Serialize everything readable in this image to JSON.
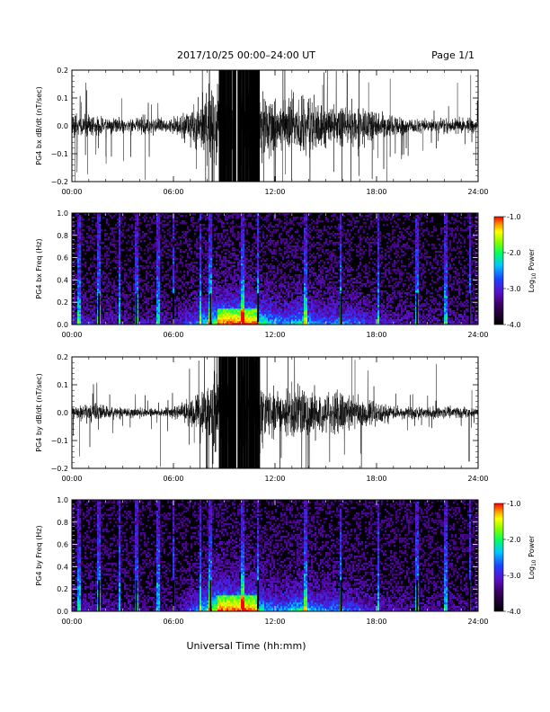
{
  "header": {
    "title": "2017/10/25  00:00–24:00 UT",
    "page": "Page 1/1"
  },
  "x_axis": {
    "label": "Universal Time (hh:mm)",
    "tick_labels": [
      "00:00",
      "06:00",
      "12:00",
      "18:00",
      "24:00"
    ]
  },
  "colorbar": {
    "label_prefix": "Log",
    "label_sub": "10",
    "label_suffix": " Power",
    "tick_labels": [
      "-1.0",
      "-2.0",
      "-3.0",
      "-4.0"
    ],
    "range": [
      -4.0,
      -1.0
    ]
  },
  "colors": {
    "background": "#ffffff",
    "trace": "#000000",
    "spectrogram_background": "#000000"
  },
  "chart_data": [
    {
      "type": "line",
      "panel": "bx-waveform",
      "ylabel": "PG4 bx dB/dt (nT/sec)",
      "xlim": [
        0,
        24
      ],
      "ylim": [
        -0.2,
        0.2
      ],
      "y_tick_labels": [
        "0.2",
        "0.1",
        "0.0",
        "−0.1",
        "−0.2"
      ],
      "x_unit": "hours UT",
      "envelope": {
        "hours": [
          0,
          1,
          2,
          3,
          4,
          5,
          6,
          6.5,
          7,
          7.5,
          8,
          8.5,
          9,
          9.5,
          10,
          10.5,
          11,
          11.5,
          12,
          12.5,
          13,
          13.5,
          14,
          14.5,
          15,
          15.5,
          16,
          16.5,
          17,
          17.5,
          18,
          18.5,
          19,
          20,
          21,
          22,
          23,
          24
        ],
        "amplitude": [
          0.06,
          0.05,
          0.04,
          0.035,
          0.035,
          0.04,
          0.04,
          0.05,
          0.08,
          0.1,
          0.14,
          0.18,
          0.2,
          0.2,
          0.2,
          0.2,
          0.18,
          0.14,
          0.12,
          0.1,
          0.12,
          0.14,
          0.12,
          0.1,
          0.09,
          0.1,
          0.1,
          0.09,
          0.08,
          0.07,
          0.06,
          0.05,
          0.04,
          0.035,
          0.03,
          0.035,
          0.035,
          0.03
        ]
      }
    },
    {
      "type": "heatmap",
      "panel": "bx-spectrogram",
      "ylabel": "PG4 bx Freq (Hz)",
      "xlim": [
        0,
        24
      ],
      "ylim": [
        0.0,
        1.0
      ],
      "y_tick_labels": [
        "1.0",
        "0.8",
        "0.6",
        "0.4",
        "0.2",
        "0.0"
      ],
      "color_range": [
        -4.0,
        -1.0
      ]
    },
    {
      "type": "line",
      "panel": "by-waveform",
      "ylabel": "PG4 by dB/dt (nT/sec)",
      "xlim": [
        0,
        24
      ],
      "ylim": [
        -0.2,
        0.2
      ],
      "y_tick_labels": [
        "0.2",
        "0.1",
        "0.0",
        "−0.1",
        "−0.2"
      ],
      "x_unit": "hours UT",
      "envelope": {
        "hours": [
          0,
          1,
          2,
          3,
          4,
          5,
          6,
          6.5,
          7,
          7.5,
          8,
          8.5,
          9,
          9.5,
          10,
          10.5,
          11,
          11.5,
          12,
          12.5,
          13,
          13.5,
          14,
          14.5,
          15,
          15.5,
          16,
          16.5,
          17,
          17.5,
          18,
          18.5,
          19,
          20,
          21,
          22,
          23,
          24
        ],
        "amplitude": [
          0.03,
          0.04,
          0.03,
          0.025,
          0.02,
          0.02,
          0.03,
          0.04,
          0.07,
          0.1,
          0.15,
          0.2,
          0.2,
          0.2,
          0.2,
          0.2,
          0.16,
          0.12,
          0.1,
          0.1,
          0.12,
          0.14,
          0.12,
          0.1,
          0.09,
          0.1,
          0.09,
          0.08,
          0.07,
          0.06,
          0.05,
          0.04,
          0.035,
          0.03,
          0.025,
          0.025,
          0.025,
          0.02
        ]
      }
    },
    {
      "type": "heatmap",
      "panel": "by-spectrogram",
      "ylabel": "PG4 by Freq (Hz)",
      "xlim": [
        0,
        24
      ],
      "ylim": [
        0.0,
        1.0
      ],
      "y_tick_labels": [
        "1.0",
        "0.8",
        "0.6",
        "0.4",
        "0.2",
        "0.0"
      ],
      "color_range": [
        -4.0,
        -1.0
      ]
    }
  ]
}
